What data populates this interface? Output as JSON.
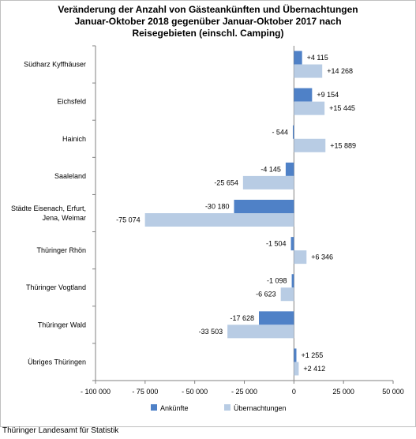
{
  "title_lines": [
    "Veränderung der Anzahl von Gästeankünften und Übernachtungen",
    "Januar-Oktober 2018 gegenüber Januar-Oktober 2017 nach",
    "Reisegebieten  (einschl. Camping)"
  ],
  "source": "Thüringer Landesamt für Statistik",
  "chart_data": {
    "type": "bar",
    "orientation": "horizontal",
    "categories": [
      [
        "Südharz Kyffhäuser"
      ],
      [
        "Eichsfeld"
      ],
      [
        "Hainich"
      ],
      [
        "Saaleland"
      ],
      [
        "Städte Eisenach, Erfurt,",
        "Jena, Weimar"
      ],
      [
        "Thüringer Rhön"
      ],
      [
        "Thüringer Vogtland"
      ],
      [
        "Thüringer Wald"
      ],
      [
        "Übriges Thüringen"
      ]
    ],
    "series": [
      {
        "name": "Ankünfte",
        "color": "#4f81c7",
        "values": [
          4115,
          9154,
          -544,
          -4145,
          -30180,
          -1504,
          -1098,
          -17628,
          1255
        ],
        "labels": [
          "+4 115",
          "+9 154",
          "- 544",
          "-4 145",
          "-30 180",
          "-1 504",
          "-1 098",
          "-17 628",
          "+1 255"
        ]
      },
      {
        "name": "Übernachtungen",
        "color": "#b8cce4",
        "values": [
          14268,
          15445,
          15889,
          -25654,
          -75074,
          6346,
          -6623,
          -33503,
          2412
        ],
        "labels": [
          "+14 268",
          "+15 445",
          "+15 889",
          "-25 654",
          "-75 074",
          "+6 346",
          "-6 623",
          "-33 503",
          "+2 412"
        ]
      }
    ],
    "xlim": [
      -100000,
      50000
    ],
    "xticks": [
      -100000,
      -75000,
      -50000,
      -25000,
      0,
      25000,
      50000
    ],
    "xtick_labels": [
      "- 100 000",
      "- 75 000",
      "- 50 000",
      "- 25 000",
      "0",
      "25 000",
      "50 000"
    ],
    "legend_position": "bottom"
  }
}
